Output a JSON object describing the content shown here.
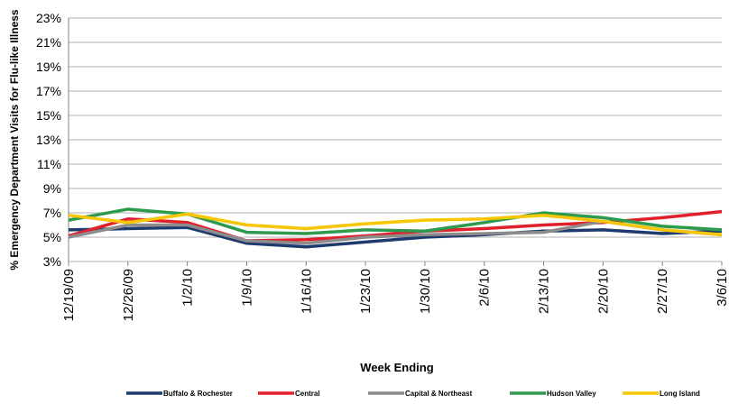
{
  "chart_data": {
    "type": "line",
    "y_label": "% Emergency Department Visits for Flu-like Illness",
    "x_label": "Week Ending",
    "categories": [
      "12/19/09",
      "12/26/09",
      "1/2/10",
      "1/9/10",
      "1/16/10",
      "1/23/10",
      "1/30/10",
      "2/6/10",
      "2/13/10",
      "2/20/10",
      "2/27/10",
      "3/6/10"
    ],
    "series": [
      {
        "name": "Buffalo & Rochester",
        "color": "#1f3a6e",
        "values": [
          5.6,
          5.7,
          5.8,
          4.5,
          4.2,
          4.6,
          5.0,
          5.2,
          5.5,
          5.6,
          5.3,
          5.5
        ]
      },
      {
        "name": "Central",
        "color": "#e0202a",
        "values": [
          5.1,
          6.5,
          6.2,
          4.7,
          4.8,
          5.1,
          5.5,
          5.7,
          6.0,
          6.2,
          6.6,
          7.1
        ]
      },
      {
        "name": "Capital & Northeast",
        "color": "#8c8c8c",
        "values": [
          5.0,
          6.0,
          6.0,
          4.7,
          4.5,
          5.0,
          5.2,
          5.3,
          5.4,
          6.3,
          5.6,
          5.2
        ]
      },
      {
        "name": "Hudson Valley",
        "color": "#2e9a4e",
        "values": [
          6.4,
          7.3,
          6.9,
          5.4,
          5.3,
          5.6,
          5.5,
          6.2,
          7.0,
          6.6,
          5.9,
          5.6
        ]
      },
      {
        "name": "Long Island",
        "color": "#f7c600",
        "values": [
          6.8,
          6.2,
          6.9,
          6.0,
          5.7,
          6.1,
          6.4,
          6.5,
          6.8,
          6.3,
          5.6,
          5.2
        ]
      }
    ],
    "ylim": [
      3,
      23
    ],
    "yticks": [
      {
        "value": 3,
        "label": "3%"
      },
      {
        "value": 5,
        "label": "5%"
      },
      {
        "value": 7,
        "label": "7%"
      },
      {
        "value": 9,
        "label": "9%"
      },
      {
        "value": 11,
        "label": "11%"
      },
      {
        "value": 13,
        "label": "13%"
      },
      {
        "value": 15,
        "label": "15%"
      },
      {
        "value": 17,
        "label": "17%"
      },
      {
        "value": 19,
        "label": "19%"
      },
      {
        "value": 21,
        "label": "21%"
      },
      {
        "value": 23,
        "label": "23%"
      }
    ],
    "grid": true
  }
}
